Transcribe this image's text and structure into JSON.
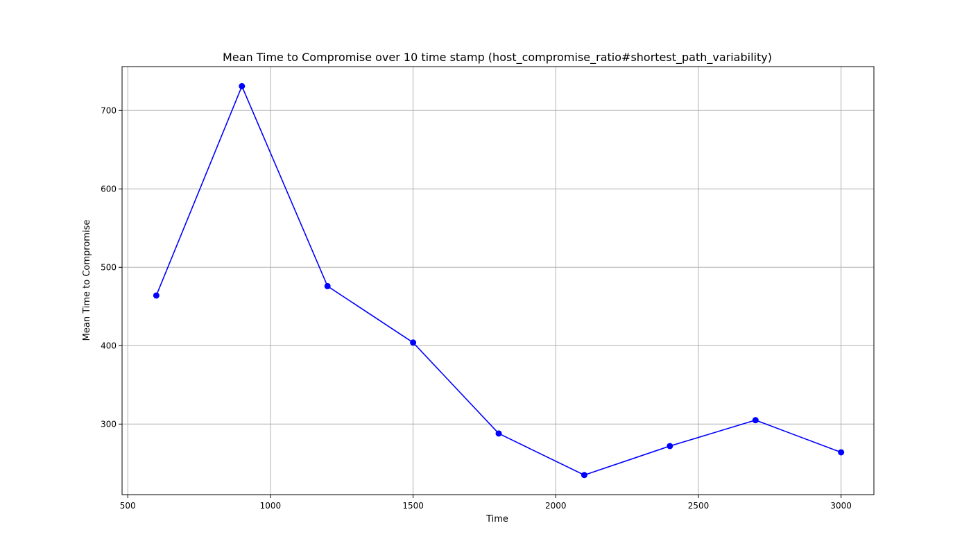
{
  "chart_data": {
    "type": "line",
    "title": "Mean Time to Compromise over 10 time stamp (host_compromise_ratio#shortest_path_variability)",
    "xlabel": "Time",
    "ylabel": "Mean Time to Compromise",
    "xlim": [
      480,
      3115
    ],
    "ylim": [
      210,
      756
    ],
    "xticks": [
      500,
      1000,
      1500,
      2000,
      2500,
      3000
    ],
    "yticks": [
      300,
      400,
      500,
      600,
      700
    ],
    "grid": true,
    "series": [
      {
        "color": "#0000ff",
        "marker": "circle",
        "x": [
          600,
          900,
          1200,
          1500,
          1800,
          2100,
          2400,
          2700,
          3000
        ],
        "y": [
          464,
          731,
          476,
          404,
          288,
          235,
          272,
          305,
          264
        ]
      }
    ]
  }
}
